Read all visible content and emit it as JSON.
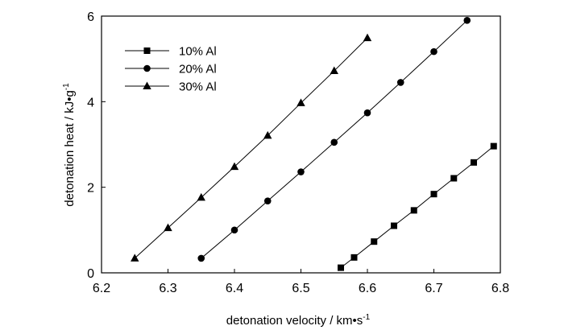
{
  "chart_data": {
    "type": "line",
    "title": "",
    "xlabel": "detonation  velocity  / km•s",
    "xlabel_sup": "-1",
    "ylabel": "detonation heat / kJ•g",
    "ylabel_sup": "-1",
    "xlim": [
      6.2,
      6.8
    ],
    "ylim": [
      0,
      6
    ],
    "x_ticks": [
      "6.2",
      "6.3",
      "6.4",
      "6.5",
      "6.6",
      "6.7",
      "6.8"
    ],
    "y_ticks": [
      "0",
      "2",
      "4",
      "6"
    ],
    "grid": false,
    "legend_position": "top-left",
    "series": [
      {
        "name": "10% Al",
        "marker": "square",
        "x": [
          6.56,
          6.58,
          6.61,
          6.64,
          6.67,
          6.7,
          6.73,
          6.76,
          6.79
        ],
        "y": [
          0.12,
          0.36,
          0.73,
          1.1,
          1.46,
          1.84,
          2.21,
          2.58,
          2.96
        ]
      },
      {
        "name": "20% Al",
        "marker": "circle",
        "x": [
          6.35,
          6.4,
          6.45,
          6.5,
          6.55,
          6.6,
          6.65,
          6.7,
          6.75
        ],
        "y": [
          0.34,
          1.0,
          1.68,
          2.36,
          3.05,
          3.74,
          4.45,
          5.17,
          5.9
        ]
      },
      {
        "name": "30% Al",
        "marker": "triangle",
        "x": [
          6.25,
          6.3,
          6.35,
          6.4,
          6.45,
          6.5,
          6.55,
          6.6
        ],
        "y": [
          0.34,
          1.05,
          1.76,
          2.48,
          3.21,
          3.97,
          4.72,
          5.49
        ]
      }
    ]
  }
}
